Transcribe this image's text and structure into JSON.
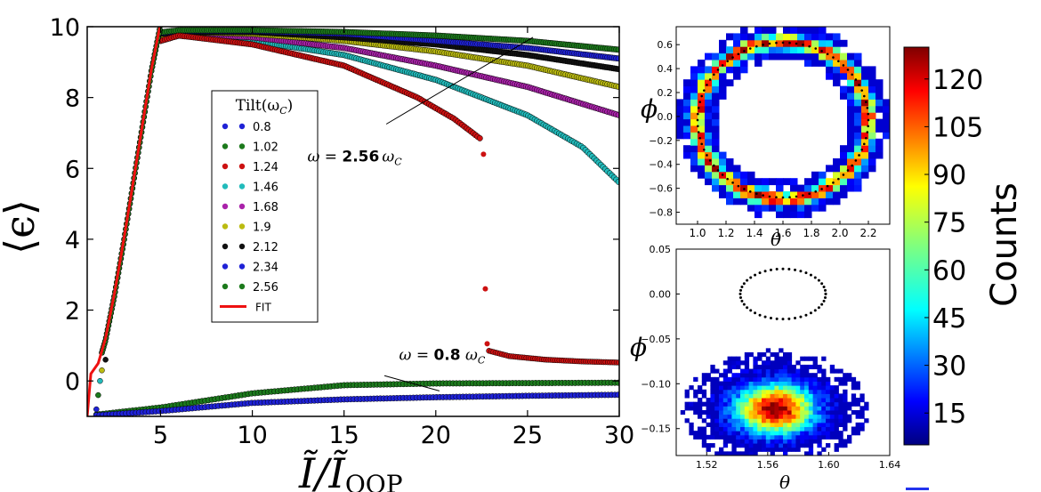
{
  "chart_data": [
    {
      "id": "main",
      "type": "scatter",
      "xlabel": "Ĩ/Ĩ",
      "xlabel_sub": "OOP",
      "ylabel": "⟨ϵ⟩",
      "xlim": [
        1,
        30
      ],
      "ylim": [
        -1,
        10
      ],
      "xticks": [
        "5",
        "10",
        "15",
        "20",
        "25",
        "30"
      ],
      "xtick_values": [
        5,
        10,
        15,
        20,
        25,
        30
      ],
      "yticks": [
        "0",
        "2",
        "4",
        "6",
        "8",
        "10"
      ],
      "ytick_values": [
        0,
        2,
        4,
        6,
        8,
        10
      ],
      "legend_title": "Tilt(ω",
      "legend_title_sub": "C",
      "legend_title_close": ")",
      "legend_position": "center-left",
      "series": [
        {
          "name": "0.8",
          "color": "#1f22d6"
        },
        {
          "name": "1.02",
          "color": "#1c7a1c"
        },
        {
          "name": "1.24",
          "color": "#cc1111"
        },
        {
          "name": "1.46",
          "color": "#22bbbb"
        },
        {
          "name": "1.68",
          "color": "#aa22aa"
        },
        {
          "name": "1.9",
          "color": "#bbbb11"
        },
        {
          "name": "2.12",
          "color": "#111111"
        },
        {
          "name": "2.34",
          "color": "#1f22d6"
        },
        {
          "name": "2.56",
          "color": "#1c7a1c"
        }
      ],
      "fit_label": "FIT",
      "fit_color": "#ee1111",
      "high_branch_curves": [
        {
          "series": "1.46",
          "x": [
            5,
            6,
            10,
            15,
            20,
            25,
            28,
            30
          ],
          "y": [
            9.6,
            9.75,
            9.6,
            9.2,
            8.5,
            7.5,
            6.6,
            5.6
          ]
        },
        {
          "series": "1.68",
          "x": [
            5,
            6,
            10,
            15,
            20,
            25,
            30
          ],
          "y": [
            9.7,
            9.8,
            9.7,
            9.4,
            8.9,
            8.3,
            7.5
          ]
        },
        {
          "series": "1.9",
          "x": [
            5,
            6,
            10,
            15,
            20,
            25,
            30
          ],
          "y": [
            9.75,
            9.85,
            9.8,
            9.6,
            9.3,
            8.9,
            8.3
          ]
        },
        {
          "series": "2.12",
          "x": [
            5,
            6,
            10,
            15,
            20,
            25,
            30
          ],
          "y": [
            9.8,
            9.85,
            9.85,
            9.7,
            9.5,
            9.2,
            8.8
          ]
        },
        {
          "series": "2.34",
          "x": [
            5,
            6,
            10,
            15,
            20,
            25,
            30
          ],
          "y": [
            9.82,
            9.88,
            9.88,
            9.8,
            9.6,
            9.4,
            9.1
          ]
        },
        {
          "series": "2.56",
          "x": [
            5,
            6,
            10,
            15,
            20,
            25,
            30
          ],
          "y": [
            9.84,
            9.9,
            9.9,
            9.85,
            9.75,
            9.6,
            9.35
          ]
        }
      ],
      "red_branch_upper": {
        "x": [
          5,
          6,
          10,
          15,
          19,
          21,
          22.4
        ],
        "y": [
          9.6,
          9.75,
          9.5,
          8.9,
          8.0,
          7.4,
          6.85
        ]
      },
      "red_branch_isolated": {
        "x": [
          22.6,
          22.7,
          22.8
        ],
        "y": [
          6.4,
          2.6,
          1.05
        ]
      },
      "red_branch_lower": {
        "x": [
          22.9,
          24,
          26,
          28,
          30
        ],
        "y": [
          0.85,
          0.7,
          0.6,
          0.55,
          0.52
        ]
      },
      "low_branch_curves": [
        {
          "series": "1.02",
          "x": [
            1.5,
            5,
            10,
            15,
            20,
            25,
            30
          ],
          "y": [
            -0.95,
            -0.75,
            -0.35,
            -0.12,
            -0.07,
            -0.06,
            -0.05
          ]
        },
        {
          "series": "0.8",
          "x": [
            1.5,
            5,
            10,
            15,
            20,
            25,
            30
          ],
          "y": [
            -0.97,
            -0.85,
            -0.62,
            -0.52,
            -0.46,
            -0.42,
            -0.39
          ]
        }
      ],
      "rise_points": {
        "x": [
          1.5,
          1.6,
          1.7,
          1.8,
          2.0
        ],
        "y": [
          -0.8,
          -0.4,
          0.0,
          0.3,
          0.6
        ]
      },
      "fit_line": {
        "x": [
          1,
          1.2,
          1.6,
          2,
          2.5,
          3,
          3.5,
          4,
          4.5,
          5,
          20
        ],
        "y": [
          -1,
          0.2,
          0.5,
          1.2,
          2.5,
          4.0,
          5.6,
          7.2,
          8.8,
          10.1,
          10.1
        ]
      },
      "annotations": [
        {
          "id": "upper",
          "prefix": "ω = ",
          "value": "2.56",
          "unit": "ω",
          "unit_sub": "C",
          "label_x": 13,
          "label_y": 6.2,
          "arrow_from_x": 17.3,
          "arrow_from_y": 7.25,
          "arrow_to_x": 25.3,
          "arrow_to_y": 9.7
        },
        {
          "id": "lower",
          "prefix": "ω = ",
          "value": "0.8",
          "unit": " ω",
          "unit_sub": "C",
          "label_x": 18,
          "label_y": 0.6,
          "arrow_from_x": 17.2,
          "arrow_from_y": 0.15,
          "arrow_to_x": 20.2,
          "arrow_to_y": -0.28
        }
      ]
    },
    {
      "id": "inset-top",
      "type": "heatmap",
      "xlabel": "θ",
      "ylabel": "ϕ",
      "xlim": [
        0.85,
        2.35
      ],
      "ylim": [
        -0.9,
        0.75
      ],
      "xticks": [
        "1.0",
        "1.2",
        "1.4",
        "1.6",
        "1.8",
        "2.0",
        "2.2"
      ],
      "xtick_values": [
        1.0,
        1.2,
        1.4,
        1.6,
        1.8,
        2.0,
        2.2
      ],
      "yticks": [
        "0.6",
        "0.4",
        "0.2",
        "0.0",
        "−0.2",
        "−0.4",
        "−0.6",
        "−0.8"
      ],
      "ytick_values": [
        0.6,
        0.4,
        0.2,
        0.0,
        -0.2,
        -0.4,
        -0.6,
        -0.8
      ],
      "ring_center": [
        1.6,
        -0.03
      ],
      "ring_radius_theta": 0.6,
      "ring_radius_phi": 0.66
    },
    {
      "id": "inset-bottom",
      "type": "heatmap",
      "xlabel": "θ",
      "ylabel": "ϕ",
      "xlim": [
        1.5,
        1.64
      ],
      "ylim": [
        -0.18,
        0.05
      ],
      "xticks": [
        "1.52",
        "1.56",
        "1.60",
        "1.64"
      ],
      "xtick_values": [
        1.52,
        1.56,
        1.6,
        1.64
      ],
      "yticks": [
        "0.05",
        "0.00",
        "−0.05",
        "−0.10",
        "−0.15"
      ],
      "ytick_values": [
        0.05,
        0.0,
        -0.05,
        -0.1,
        -0.15
      ],
      "blob_center": [
        1.565,
        -0.128
      ],
      "dotted_ellipse_center": [
        1.57,
        0.0
      ],
      "dotted_ellipse_radii": [
        0.028,
        0.028
      ]
    },
    {
      "id": "colorbar",
      "type": "colorbar",
      "label": "Counts",
      "range": [
        5,
        130
      ],
      "ticks": [
        "120",
        "105",
        "90",
        "75",
        "60",
        "45",
        "30",
        "15"
      ],
      "tick_values": [
        120,
        105,
        90,
        75,
        60,
        45,
        30,
        15
      ]
    }
  ]
}
